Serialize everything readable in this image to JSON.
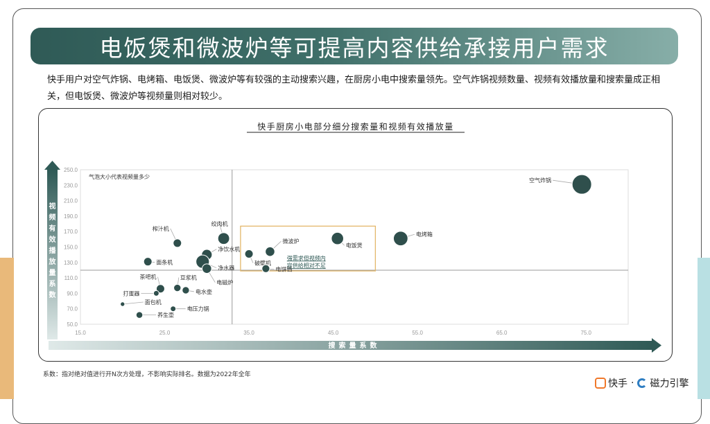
{
  "title": "电饭煲和微波炉等可提高内容供给承接用户需求",
  "intro": "快手用户对空气炸锅、电烤箱、电饭煲、微波炉等有较强的主动搜索兴趣，在厨房小电中搜索量领先。空气炸锅视频数量、视频有效播放量和搜索量成正相关，但电饭煲、微波炉等视频量则相对较少。",
  "footnote": "系数：指对绝对值进行开N次方处理，不影响实际排名。数据为2022年全年",
  "brand": {
    "kuaishou": "快手",
    "separator": "·",
    "cili": "磁力引擎"
  },
  "colors": {
    "bubble": "#2f4f4c",
    "highlight_box": "#e3b76a",
    "arrow": "#2f5a56",
    "banner_start": "#2f5a56",
    "banner_end": "#87aea8"
  },
  "chart_data": {
    "type": "scatter",
    "title": "快手厨房小电部分细分搜索量和视频有效播放量",
    "xlabel": "搜索量系数",
    "ylabel": "视频有效播放量系数",
    "bubble_note": "气泡大小代表视频量多少",
    "xlim": [
      15,
      80
    ],
    "ylim": [
      50,
      250
    ],
    "x_ticks": [
      "15.0",
      "25.0",
      "35.0",
      "45.0",
      "55.0",
      "65.0",
      "75.0"
    ],
    "y_ticks": [
      "50.0",
      "70.0",
      "90.0",
      "110.0",
      "130.0",
      "150.0",
      "170.0",
      "190.0",
      "210.0",
      "230.0",
      "250.0"
    ],
    "divider": {
      "x": 33,
      "y": 120
    },
    "highlight": {
      "x_range": [
        34,
        50
      ],
      "y_range": [
        119,
        177
      ],
      "label_line1": "强需求但视频内",
      "label_line2": "容供给相对不足"
    },
    "points": [
      {
        "name": "空气炸锅",
        "x": 74.5,
        "y": 231,
        "size": 3.0
      },
      {
        "name": "电烤箱",
        "x": 53,
        "y": 161,
        "size": 2.1
      },
      {
        "name": "电饭煲",
        "x": 45.5,
        "y": 161,
        "size": 1.7
      },
      {
        "name": "微波炉",
        "x": 37.5,
        "y": 144,
        "size": 1.2
      },
      {
        "name": "破壁机",
        "x": 35,
        "y": 141,
        "size": 1.0
      },
      {
        "name": "电饼铛",
        "x": 37,
        "y": 122,
        "size": 0.9
      },
      {
        "name": "绞肉机",
        "x": 32,
        "y": 161,
        "size": 1.6
      },
      {
        "name": "榨汁机",
        "x": 26.5,
        "y": 155,
        "size": 1.0
      },
      {
        "name": "净饮水机",
        "x": 30,
        "y": 140,
        "size": 1.4
      },
      {
        "name": "净水器",
        "x": 29.5,
        "y": 131,
        "size": 1.9
      },
      {
        "name": "电磁炉",
        "x": 30,
        "y": 122,
        "size": 1.2
      },
      {
        "name": "面条机",
        "x": 23,
        "y": 131,
        "size": 1.0
      },
      {
        "name": "茶吧机",
        "x": 24.5,
        "y": 96,
        "size": 1.0
      },
      {
        "name": "豆浆机",
        "x": 26.5,
        "y": 97,
        "size": 0.8
      },
      {
        "name": "电水壶",
        "x": 27.5,
        "y": 94,
        "size": 0.8
      },
      {
        "name": "打蛋器",
        "x": 24,
        "y": 90,
        "size": 0.5
      },
      {
        "name": "面包机",
        "x": 20,
        "y": 76,
        "size": 0.3
      },
      {
        "name": "电压力锅",
        "x": 26,
        "y": 70,
        "size": 0.5
      },
      {
        "name": "养生壶",
        "x": 22,
        "y": 62,
        "size": 0.7
      }
    ]
  }
}
